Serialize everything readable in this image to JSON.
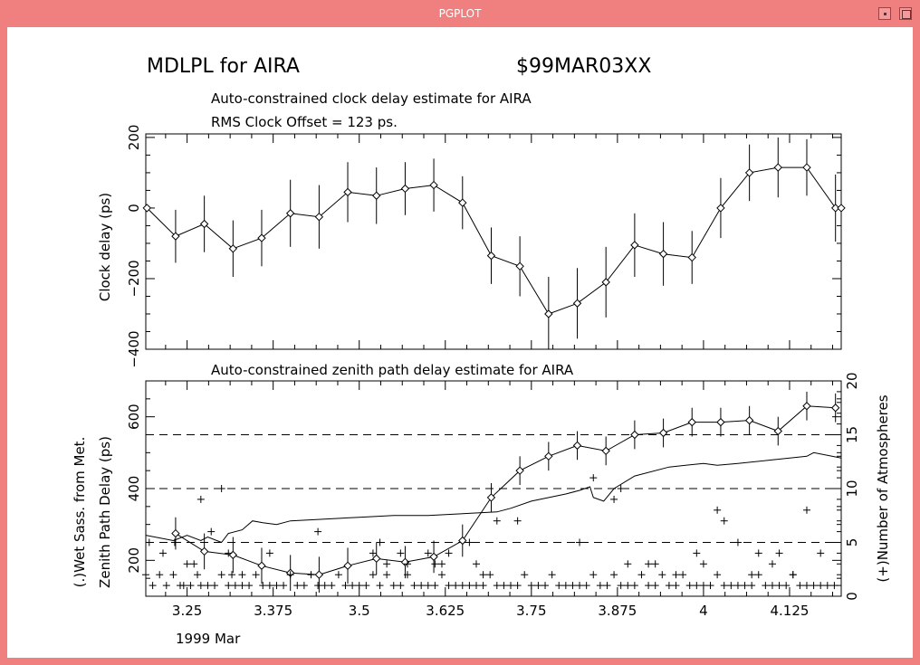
{
  "window": {
    "title": "PGPLOT"
  },
  "header": {
    "title": "MDLPL for AIRA",
    "session": "$99MAR03XX",
    "subtitle": "Auto-constrained clock delay estimate for AIRA",
    "rms": "RMS Clock Offset = 123 ps."
  },
  "colors": {
    "frame": "#f08080",
    "background": "#ffffff",
    "ink": "#000000"
  },
  "chart_data": [
    {
      "type": "line",
      "title": "Auto-constrained clock delay estimate for AIRA",
      "ylabel": "Clock delay (ps)",
      "xlabel": "",
      "xlim": [
        3.19,
        4.2
      ],
      "ylim": [
        -400,
        210
      ],
      "yticks": [
        -400,
        -200,
        0,
        200
      ],
      "yticks_labels": [
        "−400",
        "−200",
        "0",
        "200"
      ],
      "grid": false,
      "series": [
        {
          "x": [
            3.1917,
            3.2333,
            3.275,
            3.3167,
            3.3583,
            3.4,
            3.4417,
            3.4833,
            3.525,
            3.5667,
            3.6083,
            3.65,
            3.6917,
            3.7333,
            3.775,
            3.8167,
            3.8583,
            3.9,
            3.9417,
            3.9833,
            4.025,
            4.0667,
            4.1083,
            4.15,
            4.1917,
            4.2
          ],
          "y": [
            0,
            -80,
            -45,
            -115,
            -85,
            -15,
            -25,
            45,
            35,
            55,
            65,
            15,
            -135,
            -165,
            -300,
            -270,
            -210,
            -105,
            -130,
            -140,
            0,
            100,
            115,
            115,
            0,
            0
          ],
          "yerr": [
            0,
            75,
            80,
            80,
            80,
            95,
            90,
            85,
            80,
            75,
            75,
            75,
            80,
            85,
            105,
            100,
            100,
            90,
            90,
            75,
            85,
            80,
            85,
            80,
            95,
            0
          ]
        }
      ]
    },
    {
      "type": "line",
      "title": "Auto-constrained zenith path delay estimate for AIRA",
      "ylabel": "Zenith Path Delay (ps)",
      "ylabel2": "(.)Wet Sass. from Met.",
      "right_ylabel": "(+)Number of Atmospheres",
      "xlabel": "1999 Mar",
      "xlim": [
        3.19,
        4.2
      ],
      "ylim": [
        100,
        700
      ],
      "ylim_right": [
        0,
        20
      ],
      "xticks": [
        3.25,
        3.375,
        3.5,
        3.625,
        3.75,
        3.875,
        4.0,
        4.125
      ],
      "xtick_labels": [
        "3.25",
        "3.375",
        "3.5",
        "3.625",
        "3.75",
        "3.875",
        "4",
        "4.125"
      ],
      "yticks": [
        200,
        400,
        600
      ],
      "yticks_labels": [
        "200",
        "400",
        "600"
      ],
      "yticks_right": [
        0,
        5,
        10,
        15,
        20
      ],
      "yticks_right_labels": [
        "0",
        "5",
        "10",
        "15",
        "20"
      ],
      "grid": false,
      "series": [
        {
          "name": "zenith path delay",
          "x": [
            3.2333,
            3.275,
            3.3167,
            3.3583,
            3.4,
            3.4417,
            3.4833,
            3.525,
            3.5667,
            3.6083,
            3.65,
            3.6917,
            3.7333,
            3.775,
            3.8167,
            3.8583,
            3.9,
            3.9417,
            3.9833,
            4.025,
            4.0667,
            4.1083,
            4.15,
            4.1917
          ],
          "y": [
            275,
            225,
            215,
            185,
            165,
            160,
            185,
            205,
            195,
            210,
            255,
            375,
            450,
            490,
            520,
            505,
            550,
            555,
            585,
            585,
            590,
            560,
            630,
            625
          ],
          "yerr": [
            45,
            50,
            50,
            50,
            50,
            50,
            50,
            45,
            45,
            45,
            45,
            40,
            40,
            40,
            40,
            40,
            40,
            40,
            40,
            40,
            40,
            40,
            40,
            40
          ]
        },
        {
          "name": "wet saastamoinen",
          "x": [
            3.19,
            3.23,
            3.25,
            3.27,
            3.28,
            3.3,
            3.31,
            3.33,
            3.345,
            3.36,
            3.38,
            3.4,
            3.45,
            3.5,
            3.55,
            3.6,
            3.65,
            3.7,
            3.72,
            3.75,
            3.8,
            3.82,
            3.835,
            3.84,
            3.855,
            3.87,
            3.9,
            3.95,
            4.0,
            4.02,
            4.05,
            4.1,
            4.15,
            4.16,
            4.2
          ],
          "y": [
            270,
            255,
            270,
            255,
            265,
            250,
            275,
            285,
            310,
            305,
            300,
            310,
            315,
            320,
            325,
            325,
            330,
            335,
            345,
            365,
            385,
            395,
            405,
            375,
            365,
            400,
            435,
            460,
            470,
            465,
            470,
            480,
            490,
            500,
            485
          ]
        },
        {
          "name": "number of atmospheres",
          "x": [
            3.19,
            3.2,
            3.21,
            3.22,
            3.23,
            3.24,
            3.245,
            3.255,
            3.265,
            3.27,
            3.28,
            3.29,
            3.3,
            3.31,
            3.315,
            3.32,
            3.33,
            3.34,
            3.35,
            3.36,
            3.37,
            3.38,
            3.39,
            3.4,
            3.41,
            3.42,
            3.43,
            3.44,
            3.45,
            3.46,
            3.47,
            3.48,
            3.49,
            3.5,
            3.51,
            3.52,
            3.53,
            3.54,
            3.55,
            3.56,
            3.57,
            3.58,
            3.59,
            3.6,
            3.61,
            3.62,
            3.63,
            3.64,
            3.65,
            3.66,
            3.67,
            3.68,
            3.69,
            3.7,
            3.71,
            3.72,
            3.73,
            3.74,
            3.75,
            3.76,
            3.77,
            3.78,
            3.79,
            3.8,
            3.81,
            3.82,
            3.83,
            3.84,
            3.85,
            3.86,
            3.87,
            3.88,
            3.89,
            3.9,
            3.91,
            3.92,
            3.93,
            3.94,
            3.95,
            3.96,
            3.97,
            3.98,
            3.99,
            4.0,
            4.01,
            4.02,
            4.03,
            4.04,
            4.05,
            4.06,
            4.07,
            4.08,
            4.09,
            4.1,
            4.11,
            4.12,
            4.13,
            4.14,
            4.15,
            4.16,
            4.17,
            4.18,
            4.19,
            3.27,
            3.285,
            3.3,
            3.44,
            3.53,
            3.56,
            3.6,
            3.63,
            3.66,
            3.7,
            3.73,
            3.84,
            3.87,
            3.88,
            3.99,
            4.02,
            4.03,
            4.05,
            4.11,
            4.15,
            3.195,
            3.215,
            3.232,
            3.25,
            3.26,
            3.31,
            3.33,
            3.37,
            3.52,
            3.54,
            3.57,
            3.61,
            3.62,
            3.67,
            3.68,
            3.82,
            3.89,
            3.92,
            3.93,
            3.96,
            4.0,
            4.07,
            4.08,
            4.1,
            4.13,
            4.17
          ],
          "y": [
            2,
            1,
            2,
            1,
            2,
            1,
            1,
            1,
            2,
            1,
            1,
            1,
            2,
            1,
            2,
            1,
            1,
            1,
            2,
            1,
            1,
            1,
            1,
            2,
            1,
            1,
            2,
            1,
            1,
            1,
            2,
            1,
            1,
            1,
            1,
            2,
            1,
            2,
            1,
            1,
            2,
            1,
            1,
            1,
            1,
            2,
            1,
            1,
            1,
            1,
            1,
            1,
            2,
            1,
            1,
            1,
            1,
            2,
            1,
            1,
            1,
            2,
            1,
            1,
            1,
            1,
            1,
            2,
            1,
            1,
            2,
            1,
            1,
            1,
            2,
            1,
            1,
            2,
            1,
            1,
            2,
            1,
            1,
            1,
            1,
            2,
            1,
            1,
            1,
            1,
            1,
            2,
            1,
            1,
            1,
            1,
            2,
            1,
            1,
            1,
            1,
            1,
            1,
            9,
            6,
            10,
            6,
            5,
            4,
            4,
            4,
            5,
            7,
            7,
            11,
            9,
            10,
            4,
            8,
            7,
            5,
            4,
            8,
            5,
            4,
            5,
            3,
            3,
            4,
            2,
            4,
            4,
            3,
            3,
            3,
            3,
            3,
            2,
            5,
            3,
            3,
            3,
            2,
            3,
            2,
            4,
            3,
            2,
            4
          ]
        }
      ],
      "reference_lines": [
        {
          "axis": "right",
          "value": 5,
          "style": "dashed"
        },
        {
          "axis": "right",
          "value": 10,
          "style": "dashed"
        },
        {
          "axis": "right",
          "value": 15,
          "style": "dashed"
        }
      ]
    }
  ]
}
